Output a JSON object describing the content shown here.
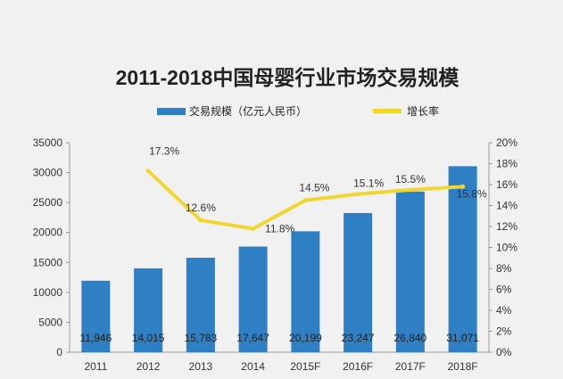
{
  "chart_data": {
    "type": "bar",
    "title": "2011-2018中国母婴行业市场交易规模",
    "categories": [
      "2011",
      "2012",
      "2013",
      "2014",
      "2015F",
      "2016F",
      "2017F",
      "2018F"
    ],
    "series": [
      {
        "name": "交易规模（亿元人民币）",
        "type": "bar",
        "axis": "left",
        "color": "#2e7fc3",
        "values": [
          11946,
          14015,
          15783,
          17647,
          20199,
          23247,
          26840,
          31071
        ],
        "labels": [
          "11,946",
          "14,015",
          "15,783",
          "17,647",
          "20,199",
          "23,247",
          "26,840",
          "31,071"
        ]
      },
      {
        "name": "增长率",
        "type": "line",
        "axis": "right",
        "color": "#f2d630",
        "values": [
          null,
          17.3,
          12.6,
          11.8,
          14.5,
          15.1,
          15.5,
          15.8
        ],
        "labels": [
          "",
          "17.3%",
          "12.6%",
          "11.8%",
          "14.5%",
          "15.1%",
          "15.5%",
          "15.8%"
        ]
      }
    ],
    "y_left": {
      "min": 0,
      "max": 35000,
      "ticks": [
        "0",
        "5000",
        "10000",
        "15000",
        "20000",
        "25000",
        "30000",
        "35000"
      ]
    },
    "y_right": {
      "min": 0,
      "max": 20,
      "ticks": [
        "0%",
        "2%",
        "4%",
        "6%",
        "8%",
        "10%",
        "12%",
        "14%",
        "16%",
        "18%",
        "20%"
      ]
    },
    "grid": false,
    "legend_position": "top"
  },
  "colors": {
    "background": "#f1f1f1",
    "axis": "#9a9a9a",
    "text": "#333333"
  }
}
